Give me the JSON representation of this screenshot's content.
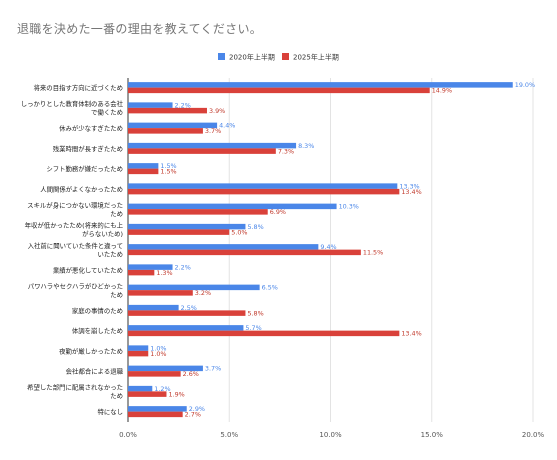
{
  "chart_data": {
    "type": "bar",
    "orientation": "horizontal",
    "title": "退職を決めた一番の理由を教えてください。",
    "legend_position": "top",
    "grid": true,
    "xlim": [
      0,
      20
    ],
    "xticks": [
      "0.0%",
      "5.0%",
      "10.0%",
      "15.0%",
      "20.0%"
    ],
    "xtick_values": [
      0,
      5,
      10,
      15,
      20
    ],
    "categories": [
      "将来の目指す方向に近づくため",
      "しっかりとした教育体制のある会社で働くため",
      "休みが少なすぎたため",
      "残業時間が長すぎたため",
      "シフト勤務が嫌だったため",
      "人間関係がよくなかったため",
      "スキルが身につかない環境だったため",
      "年収が低かったため(将来的にも上がらないため)",
      "入社前に聞いていた条件と違っていたため",
      "業績が悪化していたため",
      "パワハラやセクハラがひどかったため",
      "家庭の事情のため",
      "体調を崩したため",
      "夜勤が厳しかったため",
      "会社都合による退職",
      "希望した部門に配属されなかったため",
      "特になし"
    ],
    "category_lines": [
      [
        "将来の目指す方向に近づくため"
      ],
      [
        "しっかりとした教育体制のある会社",
        "で働くため"
      ],
      [
        "休みが少なすぎたため"
      ],
      [
        "残業時間が長すぎたため"
      ],
      [
        "シフト勤務が嫌だったため"
      ],
      [
        "人間関係がよくなかったため"
      ],
      [
        "スキルが身につかない環境だった",
        "ため"
      ],
      [
        "年収が低かったため(将来的にも上",
        "がらないため)"
      ],
      [
        "入社前に聞いていた条件と違って",
        "いたため"
      ],
      [
        "業績が悪化していたため"
      ],
      [
        "パワハラやセクハラがひどかった",
        "ため"
      ],
      [
        "家庭の事情のため"
      ],
      [
        "体調を崩したため"
      ],
      [
        "夜勤が厳しかったため"
      ],
      [
        "会社都合による退職"
      ],
      [
        "希望した部門に配属されなかった",
        "ため"
      ],
      [
        "特になし"
      ]
    ],
    "series": [
      {
        "name": "2020年上半期",
        "color": "#4a86e8",
        "label_color": "#4a86e8",
        "values": [
          19.0,
          2.2,
          4.4,
          8.3,
          1.5,
          13.3,
          10.3,
          5.8,
          9.4,
          2.2,
          6.5,
          2.5,
          5.7,
          1.0,
          3.7,
          1.2,
          2.9
        ],
        "labels": [
          "19.0%",
          "2.2%",
          "4.4%",
          "8.3%",
          "1.5%",
          "13.3%",
          "10.3%",
          "5.8%",
          "9.4%",
          "2.2%",
          "6.5%",
          "2.5%",
          "5.7%",
          "1.0%",
          "3.7%",
          "1.2%",
          "2.9%"
        ]
      },
      {
        "name": "2025年上半期",
        "color": "#d9413a",
        "label_color": "#c0392b",
        "values": [
          14.9,
          3.9,
          3.7,
          7.3,
          1.5,
          13.4,
          6.9,
          5.0,
          11.5,
          1.3,
          3.2,
          5.8,
          13.4,
          1.0,
          2.6,
          1.9,
          2.7
        ],
        "labels": [
          "14.9%",
          "3.9%",
          "3.7%",
          "7.3%",
          "1.5%",
          "13.4%",
          "6.9%",
          "5.0%",
          "11.5%",
          "1.3%",
          "3.2%",
          "5.8%",
          "13.4%",
          "1.0%",
          "2.6%",
          "1.9%",
          "2.7%"
        ]
      }
    ]
  }
}
